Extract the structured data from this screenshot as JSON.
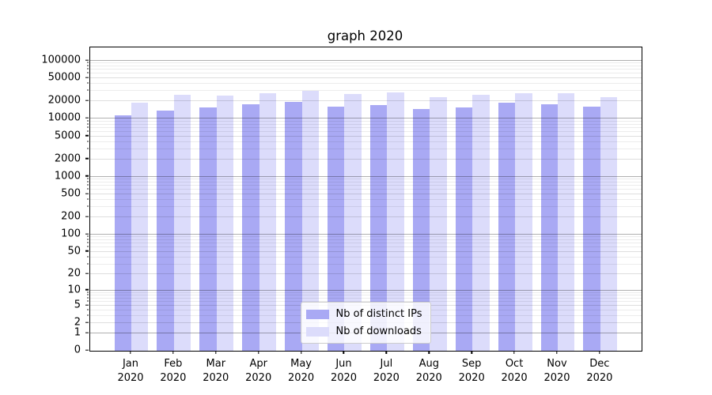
{
  "figure": {
    "background": "#ffffff",
    "frame_color": "#000000"
  },
  "chart_data": {
    "type": "bar",
    "title": "graph 2020",
    "scale": "log1p",
    "grid": true,
    "legend_position": "lower center",
    "categories": [
      "Jan 2020",
      "Feb 2020",
      "Mar 2020",
      "Apr 2020",
      "May 2020",
      "Jun 2020",
      "Jul 2020",
      "Aug 2020",
      "Sep 2020",
      "Oct 2020",
      "Nov 2020",
      "Dec 2020"
    ],
    "series": [
      {
        "name": "Nb of distinct IPs",
        "color": "#a9a9f4",
        "values": [
          11500,
          14000,
          16000,
          18000,
          19500,
          16500,
          17500,
          15000,
          16000,
          19000,
          18000,
          16500
        ]
      },
      {
        "name": "Nb of downloads",
        "color": "#dcdcfb",
        "values": [
          19000,
          26000,
          25000,
          28000,
          30000,
          26500,
          29000,
          23500,
          26000,
          28000,
          27500,
          24000
        ]
      }
    ],
    "yticks": [
      0,
      1,
      2,
      5,
      10,
      20,
      50,
      100,
      200,
      500,
      1000,
      2000,
      5000,
      10000,
      20000,
      50000,
      100000
    ],
    "ylim": [
      0,
      170000
    ],
    "xlabel": "",
    "ylabel": ""
  }
}
